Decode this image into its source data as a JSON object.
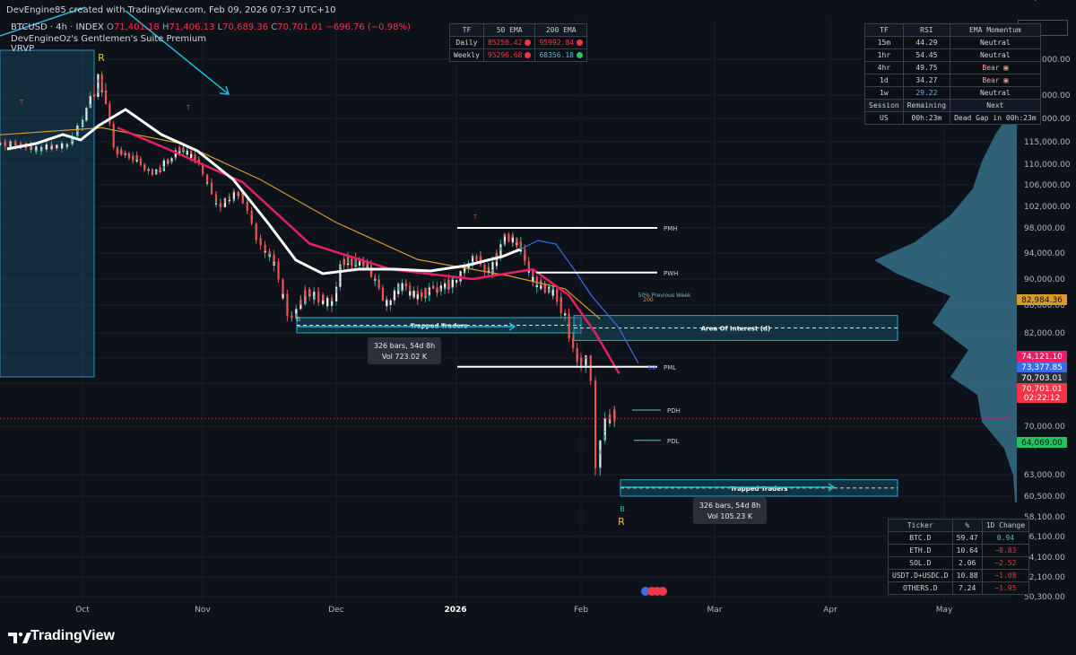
{
  "header": {
    "attribution": "DevEngine85 created with TradingView.com, Feb 09, 2026 07:37 UTC+10",
    "symbol": "BTCUSD · 4h · INDEX",
    "ohlc": {
      "o": "71,401.18",
      "h": "71,406.13",
      "l": "70,689.36",
      "c": "70,701.01",
      "change": "−696.76 (−0.98%)"
    },
    "indicator1": "DevEngineOz's Gentlemen's Suite Premium",
    "indicator2": "VRVP"
  },
  "currency_button": "USD",
  "ema_table": {
    "headers": [
      "TF",
      "50 EMA",
      "200 EMA"
    ],
    "rows": [
      {
        "tf": "Daily",
        "ema50": "85250.42",
        "ema50_dot": "red",
        "ema200": "95992.84",
        "ema200_dot": "red"
      },
      {
        "tf": "Weekly",
        "ema50": "95296.68",
        "ema50_dot": "red",
        "ema200": "68356.18",
        "ema200_dot": "green"
      }
    ]
  },
  "rsi_table": {
    "headers": [
      "TF",
      "RSI",
      "EMA Momentum"
    ],
    "rows": [
      {
        "tf": "15m",
        "rsi": "44.29",
        "momentum": "Neutral"
      },
      {
        "tf": "1hr",
        "rsi": "54.45",
        "momentum": "Neutral"
      },
      {
        "tf": "4hr",
        "rsi": "49.75",
        "momentum": "Bear"
      },
      {
        "tf": "1d",
        "rsi": "34.27",
        "momentum": "Bear"
      },
      {
        "tf": "1w",
        "rsi": "29.22",
        "momentum": "Neutral"
      }
    ],
    "session_headers": [
      "Session",
      "Remaining",
      "Next"
    ],
    "session_row": {
      "session": "US",
      "remaining": "00h:23m",
      "next": "Dead Gap in 00h:23m"
    }
  },
  "dominance_table": {
    "headers": [
      "Ticker",
      "%",
      "1D Change"
    ],
    "rows": [
      {
        "ticker": "BTC.D",
        "pct": "59.47",
        "change": "0.94"
      },
      {
        "ticker": "ETH.D",
        "pct": "10.64",
        "change": "−0.83"
      },
      {
        "ticker": "SOL.D",
        "pct": "2.06",
        "change": "−2.52"
      },
      {
        "ticker": "USDT.D+USDC.D",
        "pct": "10.88",
        "change": "−1.08"
      },
      {
        "ticker": "OTHERS.D",
        "pct": "7.24",
        "change": "−1.95"
      }
    ]
  },
  "colors": {
    "background": "#0d121a",
    "up": "#26a69a",
    "down": "#ef5350",
    "ema_pink": "#e91e63",
    "ema_orange": "#d89a2a",
    "ema_blue": "#3a6ee8",
    "ema_white": "#ffffff",
    "cyan": "#22b8d8"
  },
  "chart_data": {
    "type": "candlestick",
    "symbol": "BTCUSD",
    "timeframe": "4h",
    "x_ticks": [
      "Oct",
      "Nov",
      "Dec",
      "2026",
      "Feb",
      "Mar",
      "Apr",
      "May"
    ],
    "y_ticks": [
      "128,000.00",
      "124,000.00",
      "120,000.00",
      "115,000.00",
      "110,000.00",
      "106,000.00",
      "102,000.00",
      "98,000.00",
      "94,000.00",
      "90,000.00",
      "86,000.00",
      "82,000.00",
      "78,000.00",
      "74,000.00",
      "70,000.00",
      "66,000.00",
      "63,000.00",
      "60,500.00",
      "58,100.00",
      "56,100.00",
      "54,100.00",
      "52,100.00",
      "50,300.00",
      "48,600.00"
    ],
    "y_tick_values": [
      128000,
      124000,
      120000,
      115000,
      110000,
      106000,
      102000,
      98000,
      94000,
      90000,
      86000,
      82000,
      78000,
      74000,
      70000,
      66000,
      63000,
      60500,
      58100,
      56100,
      54100,
      52100,
      50300,
      48600
    ],
    "price_path": [
      [
        "2025-09-15",
        115000
      ],
      [
        "2025-09-22",
        113500
      ],
      [
        "2025-09-29",
        114500
      ],
      [
        "2025-10-03",
        122000
      ],
      [
        "2025-10-06",
        126000
      ],
      [
        "2025-10-08",
        123000
      ],
      [
        "2025-10-10",
        113000
      ],
      [
        "2025-10-14",
        112000
      ],
      [
        "2025-10-20",
        108000
      ],
      [
        "2025-10-27",
        113500
      ],
      [
        "2025-11-01",
        110000
      ],
      [
        "2025-11-05",
        102000
      ],
      [
        "2025-11-10",
        105000
      ],
      [
        "2025-11-14",
        96000
      ],
      [
        "2025-11-18",
        92000
      ],
      [
        "2025-11-21",
        84000
      ],
      [
        "2025-11-25",
        88000
      ],
      [
        "2025-12-01",
        86000
      ],
      [
        "2025-12-03",
        93000
      ],
      [
        "2025-12-10",
        92000
      ],
      [
        "2025-12-15",
        86000
      ],
      [
        "2025-12-18",
        89000
      ],
      [
        "2025-12-22",
        87500
      ],
      [
        "2025-12-28",
        88500
      ],
      [
        "2026-01-02",
        90000
      ],
      [
        "2026-01-06",
        93500
      ],
      [
        "2026-01-10",
        91000
      ],
      [
        "2026-01-14",
        97000
      ],
      [
        "2026-01-17",
        95500
      ],
      [
        "2026-01-21",
        89500
      ],
      [
        "2026-01-26",
        88000
      ],
      [
        "2026-01-29",
        84000
      ],
      [
        "2026-01-31",
        78500
      ],
      [
        "2026-02-02",
        77000
      ],
      [
        "2026-02-03",
        78500
      ],
      [
        "2026-02-04",
        73000
      ],
      [
        "2026-02-05",
        63000
      ],
      [
        "2026-02-06",
        68000
      ],
      [
        "2026-02-07",
        71000
      ],
      [
        "2026-02-09",
        70701
      ]
    ],
    "ema_series": [
      {
        "name": "200",
        "color": "#d89a2a",
        "values": [
          [
            "2025-09-15",
            116500
          ],
          [
            "2025-10-06",
            118000
          ],
          [
            "2025-10-27",
            114500
          ],
          [
            "2025-11-14",
            107000
          ],
          [
            "2025-12-01",
            99000
          ],
          [
            "2025-12-22",
            93000
          ],
          [
            "2026-01-14",
            90500
          ],
          [
            "2026-01-28",
            88500
          ],
          [
            "2026-02-05",
            84000
          ]
        ]
      },
      {
        "name": "50",
        "color": "#e91e63",
        "values": [
          [
            "2025-10-10",
            118000
          ],
          [
            "2025-10-24",
            113000
          ],
          [
            "2025-11-10",
            106500
          ],
          [
            "2025-11-25",
            95500
          ],
          [
            "2025-12-15",
            91500
          ],
          [
            "2026-01-05",
            90000
          ],
          [
            "2026-01-20",
            91500
          ],
          [
            "2026-01-29",
            87500
          ],
          [
            "2026-02-04",
            82000
          ],
          [
            "2026-02-09",
            75500
          ]
        ]
      }
    ],
    "levels": [
      {
        "label": "PMH",
        "price": 98000
      },
      {
        "label": "PWH",
        "price": 91000
      },
      {
        "label": "PML",
        "price": 76600
      },
      {
        "label": "PDH",
        "price": 71500
      },
      {
        "label": "PDL",
        "price": 67000
      }
    ],
    "zones": [
      {
        "label": "Trapped Traders",
        "top": 84200,
        "bottom": 82000
      },
      {
        "label": "Area Of Interest (d)",
        "top": 84500,
        "bottom": 80800
      },
      {
        "label": "Trapped Traders",
        "top": 62400,
        "bottom": 60500
      }
    ],
    "annotations": [
      "50% Previous Week",
      "200",
      "50",
      "R",
      "R",
      "B",
      "B",
      "T",
      "T",
      "T"
    ],
    "measures": [
      {
        "bars": "326 bars, 54d 8h",
        "vol": "Vol 723.02 K"
      },
      {
        "bars": "326 bars, 54d 8h",
        "vol": "Vol 105.23 K"
      }
    ],
    "price_labels": [
      {
        "value": "82,984.36",
        "color": "#d89a2a"
      },
      {
        "value": "74,121.10",
        "color": "#e91e63"
      },
      {
        "value": "73,377.85",
        "color": "#3a6ee8"
      },
      {
        "value": "70,703.01",
        "color": "#d1d4dc"
      },
      {
        "value": "70,701.01",
        "color": "#f23645"
      },
      {
        "value": "02:22:12",
        "color": "#f23645"
      },
      {
        "value": "64,069.00",
        "color": "#22c55e"
      }
    ],
    "last_price": 70701.01
  }
}
